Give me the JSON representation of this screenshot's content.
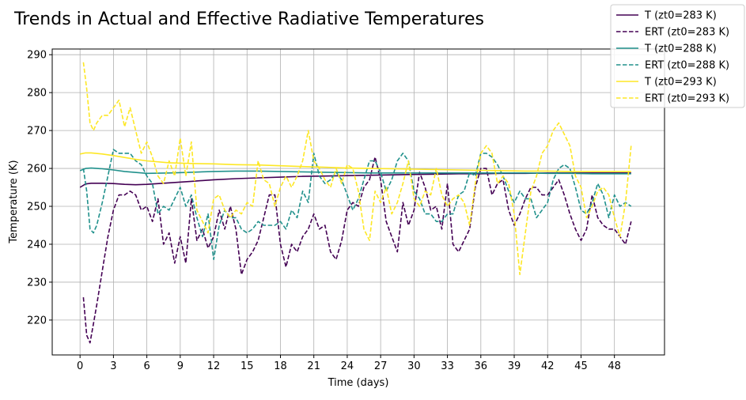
{
  "chart_data": {
    "type": "line",
    "title": "Trends in Actual and Effective Radiative Temperatures",
    "xlabel": "Time (days)",
    "ylabel": "Temperature (K)",
    "xlim": [
      -2.5,
      52.5
    ],
    "ylim": [
      210.8,
      291.5
    ],
    "xticks": [
      0,
      3,
      6,
      9,
      12,
      15,
      18,
      21,
      24,
      27,
      30,
      33,
      36,
      39,
      42,
      45,
      48
    ],
    "yticks": [
      220,
      230,
      240,
      250,
      260,
      270,
      280,
      290
    ],
    "grid": true,
    "legend_position": "top-right",
    "series": [
      {
        "name": "T (zt0=283 K)",
        "color": "#440154",
        "dashed": false,
        "x": [
          0,
          0.5,
          1,
          2,
          3,
          4,
          5,
          6,
          8,
          10,
          12,
          14,
          16,
          18,
          20,
          22,
          24,
          26,
          28,
          30,
          32,
          34,
          36,
          38,
          40,
          42,
          44,
          46,
          48,
          49.5
        ],
        "y": [
          255.0,
          255.9,
          256.1,
          256.1,
          256.0,
          255.8,
          255.7,
          255.8,
          256.2,
          256.6,
          257.0,
          257.3,
          257.5,
          257.7,
          257.9,
          258.0,
          258.1,
          258.2,
          258.3,
          258.4,
          258.5,
          258.6,
          258.6,
          258.7,
          258.7,
          258.8,
          258.8,
          258.8,
          258.8,
          258.8
        ]
      },
      {
        "name": "ERT (zt0=283 K)",
        "color": "#440154",
        "dashed": true,
        "x": [
          0.3,
          0.6,
          0.9,
          1.2,
          1.5,
          2.0,
          2.5,
          3.0,
          3.5,
          4.0,
          4.5,
          5.0,
          5.5,
          6.0,
          6.5,
          7.0,
          7.5,
          8.0,
          8.5,
          9.0,
          9.5,
          10.0,
          10.5,
          11.0,
          11.5,
          12.0,
          12.5,
          13.0,
          13.5,
          14.0,
          14.5,
          15.0,
          15.5,
          16.0,
          16.5,
          17.0,
          17.5,
          18.0,
          18.5,
          19.0,
          19.5,
          20.0,
          20.5,
          21.0,
          21.5,
          22.0,
          22.5,
          23.0,
          23.5,
          24.0,
          24.5,
          25.0,
          25.5,
          26.0,
          26.5,
          27.0,
          27.5,
          28.0,
          28.5,
          29.0,
          29.5,
          30.0,
          30.5,
          31.0,
          31.5,
          32.0,
          32.5,
          33.0,
          33.5,
          34.0,
          34.5,
          35.0,
          35.5,
          36.0,
          36.5,
          37.0,
          37.5,
          38.0,
          38.5,
          39.0,
          39.5,
          40.0,
          40.5,
          41.0,
          41.5,
          42.0,
          42.5,
          43.0,
          43.5,
          44.0,
          44.5,
          45.0,
          45.5,
          46.0,
          46.5,
          47.0,
          47.5,
          48.0,
          48.5,
          49.0,
          49.5
        ],
        "y": [
          226,
          216,
          214,
          219,
          224,
          233,
          242,
          249,
          253,
          253,
          254,
          253,
          249,
          250,
          246,
          252,
          240,
          243,
          235,
          242,
          235,
          252,
          241,
          244,
          239,
          242,
          249,
          244,
          250,
          244,
          232,
          236,
          238,
          241,
          247,
          253,
          253,
          240,
          234,
          240,
          238,
          242,
          244,
          248,
          244,
          245,
          238,
          236,
          241,
          249,
          251,
          250,
          255,
          257,
          263,
          257,
          246,
          242,
          238,
          251,
          245,
          249,
          259,
          255,
          249,
          250,
          244,
          256,
          240,
          238,
          241,
          244,
          255,
          260,
          260,
          253,
          256,
          257,
          249,
          245,
          248,
          252,
          255,
          255,
          253,
          253,
          255,
          257,
          253,
          248,
          244,
          241,
          244,
          253,
          247,
          245,
          244,
          244,
          242,
          240,
          246
        ]
      },
      {
        "name": "T (zt0=288 K)",
        "color": "#21918c",
        "dashed": false,
        "x": [
          0,
          0.5,
          1,
          2,
          3,
          4,
          6,
          8,
          10,
          12,
          14,
          16,
          18,
          20,
          22,
          24,
          26,
          28,
          30,
          32,
          34,
          36,
          38,
          40,
          42,
          44,
          46,
          48,
          49.5
        ],
        "y": [
          259.4,
          260.0,
          260.1,
          259.9,
          259.6,
          259.2,
          258.7,
          258.8,
          259.0,
          259.2,
          259.3,
          259.3,
          259.2,
          259.1,
          259.0,
          258.9,
          258.8,
          258.8,
          258.8,
          258.8,
          258.8,
          258.8,
          258.8,
          258.8,
          258.7,
          258.7,
          258.6,
          258.6,
          258.6
        ]
      },
      {
        "name": "ERT (zt0=288 K)",
        "color": "#21918c",
        "dashed": true,
        "x": [
          0.3,
          0.6,
          0.9,
          1.2,
          1.5,
          2.0,
          2.5,
          3.0,
          3.5,
          4.0,
          4.5,
          5.0,
          5.5,
          6.0,
          6.5,
          7.0,
          7.5,
          8.0,
          8.5,
          9.0,
          9.5,
          10.0,
          10.5,
          11.0,
          11.5,
          12.0,
          12.5,
          13.0,
          13.5,
          14.0,
          14.5,
          15.0,
          15.5,
          16.0,
          16.5,
          17.0,
          17.5,
          18.0,
          18.5,
          19.0,
          19.5,
          20.0,
          20.5,
          21.0,
          21.5,
          22.0,
          22.5,
          23.0,
          23.5,
          24.0,
          24.5,
          25.0,
          25.5,
          26.0,
          26.5,
          27.0,
          27.5,
          28.0,
          28.5,
          29.0,
          29.5,
          30.0,
          30.5,
          31.0,
          31.5,
          32.0,
          32.5,
          33.0,
          33.5,
          34.0,
          34.5,
          35.0,
          35.5,
          36.0,
          36.5,
          37.0,
          37.5,
          38.0,
          38.5,
          39.0,
          39.5,
          40.0,
          40.5,
          41.0,
          41.5,
          42.0,
          42.5,
          43.0,
          43.5,
          44.0,
          44.5,
          45.0,
          45.5,
          46.0,
          46.5,
          47.0,
          47.5,
          48.0,
          48.5,
          49.0,
          49.5
        ],
        "y": [
          260,
          254,
          244,
          243,
          245,
          251,
          258,
          265,
          264,
          264,
          264,
          262,
          261,
          258,
          256,
          248,
          250,
          249,
          252,
          255,
          250,
          253,
          247,
          242,
          248,
          236,
          245,
          249,
          247,
          247,
          244,
          243,
          244,
          246,
          245,
          245,
          245,
          246,
          244,
          249,
          247,
          254,
          251,
          264,
          258,
          256,
          257,
          259,
          257,
          253,
          249,
          252,
          257,
          262,
          262,
          259,
          254,
          257,
          262,
          264,
          262,
          254,
          252,
          248,
          248,
          246,
          246,
          248,
          248,
          253,
          254,
          259,
          258,
          264,
          264,
          263,
          261,
          258,
          254,
          251,
          254,
          252,
          252,
          247,
          249,
          251,
          257,
          260,
          261,
          260,
          255,
          249,
          248,
          251,
          256,
          253,
          247,
          253,
          250,
          251,
          250
        ]
      },
      {
        "name": "T (zt0=293 K)",
        "color": "#fde725",
        "dashed": false,
        "x": [
          0,
          0.5,
          1,
          2,
          3,
          4,
          5,
          6,
          8,
          10,
          12,
          14,
          16,
          18,
          20,
          22,
          24,
          26,
          28,
          30,
          32,
          34,
          36,
          38,
          40,
          42,
          44,
          46,
          48,
          49.5
        ],
        "y": [
          263.8,
          264.1,
          264.1,
          263.8,
          263.4,
          262.9,
          262.4,
          262.0,
          261.5,
          261.3,
          261.2,
          261.0,
          260.9,
          260.7,
          260.5,
          260.3,
          260.1,
          260.0,
          259.9,
          259.8,
          259.7,
          259.6,
          259.5,
          259.4,
          259.3,
          259.3,
          259.2,
          259.2,
          259.2,
          259.2
        ]
      },
      {
        "name": "ERT (zt0=293 K)",
        "color": "#fde725",
        "dashed": true,
        "x": [
          0.3,
          0.6,
          0.9,
          1.2,
          1.5,
          2.0,
          2.5,
          3.0,
          3.5,
          4.0,
          4.5,
          5.0,
          5.5,
          6.0,
          6.5,
          7.0,
          7.5,
          8.0,
          8.5,
          9.0,
          9.5,
          10.0,
          10.5,
          11.0,
          11.5,
          12.0,
          12.5,
          13.0,
          13.5,
          14.0,
          14.5,
          15.0,
          15.5,
          16.0,
          16.5,
          17.0,
          17.5,
          18.0,
          18.5,
          19.0,
          19.5,
          20.0,
          20.5,
          21.0,
          21.5,
          22.0,
          22.5,
          23.0,
          23.5,
          24.0,
          24.5,
          25.0,
          25.5,
          26.0,
          26.5,
          27.0,
          27.5,
          28.0,
          28.5,
          29.0,
          29.5,
          30.0,
          30.5,
          31.0,
          31.5,
          32.0,
          32.5,
          33.0,
          33.5,
          34.0,
          34.5,
          35.0,
          35.5,
          36.0,
          36.5,
          37.0,
          37.5,
          38.0,
          38.5,
          39.0,
          39.5,
          40.0,
          40.5,
          41.0,
          41.5,
          42.0,
          42.5,
          43.0,
          43.5,
          44.0,
          44.5,
          45.0,
          45.5,
          46.0,
          46.5,
          47.0,
          47.5,
          48.0,
          48.5,
          49.0,
          49.5
        ],
        "y": [
          288,
          281,
          272,
          270,
          272,
          274,
          274,
          276,
          278,
          271,
          276,
          270,
          264,
          267,
          263,
          258,
          256,
          262,
          258,
          268,
          258,
          267,
          249,
          246,
          243,
          252,
          253,
          249,
          247,
          249,
          248,
          251,
          250,
          262,
          257,
          256,
          250,
          255,
          258,
          255,
          258,
          262,
          270,
          262,
          260,
          257,
          255,
          260,
          256,
          261,
          260,
          254,
          244,
          241,
          254,
          251,
          255,
          248,
          251,
          256,
          262,
          252,
          250,
          254,
          253,
          260,
          253,
          250,
          252,
          253,
          251,
          245,
          256,
          264,
          266,
          264,
          256,
          258,
          256,
          248,
          232,
          243,
          254,
          258,
          264,
          266,
          270,
          272,
          269,
          266,
          258,
          255,
          247,
          250,
          254,
          255,
          253,
          247,
          242,
          251,
          266
        ]
      }
    ]
  }
}
